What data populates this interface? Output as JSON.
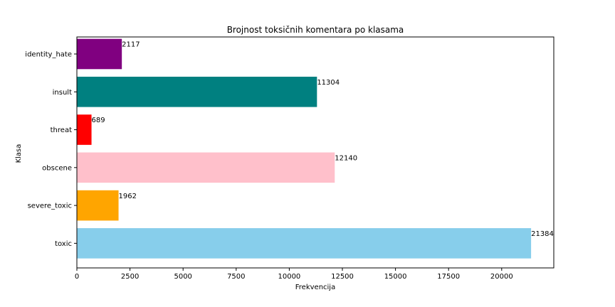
{
  "chart_data": {
    "type": "bar",
    "orientation": "horizontal",
    "title": "Brojnost toksičnih komentara po klasama",
    "xlabel": "Frekvencija",
    "ylabel": "Klasa",
    "categories": [
      "toxic",
      "severe_toxic",
      "obscene",
      "threat",
      "insult",
      "identity_hate"
    ],
    "values": [
      21384,
      1962,
      12140,
      689,
      11304,
      2117
    ],
    "value_labels": [
      "21384",
      "1962",
      "12140",
      "689",
      "11304",
      "2117"
    ],
    "colors": [
      "#87ceeb",
      "#ffa500",
      "#ffc0cb",
      "#ff0000",
      "#008080",
      "#800080"
    ],
    "xlim": [
      0,
      22453
    ],
    "xticks": [
      0,
      2500,
      5000,
      7500,
      10000,
      12500,
      15000,
      17500,
      20000
    ],
    "xtick_labels": [
      "0",
      "2500",
      "5000",
      "7500",
      "10000",
      "12500",
      "15000",
      "17500",
      "20000"
    ],
    "grid": false,
    "legend": "none"
  }
}
